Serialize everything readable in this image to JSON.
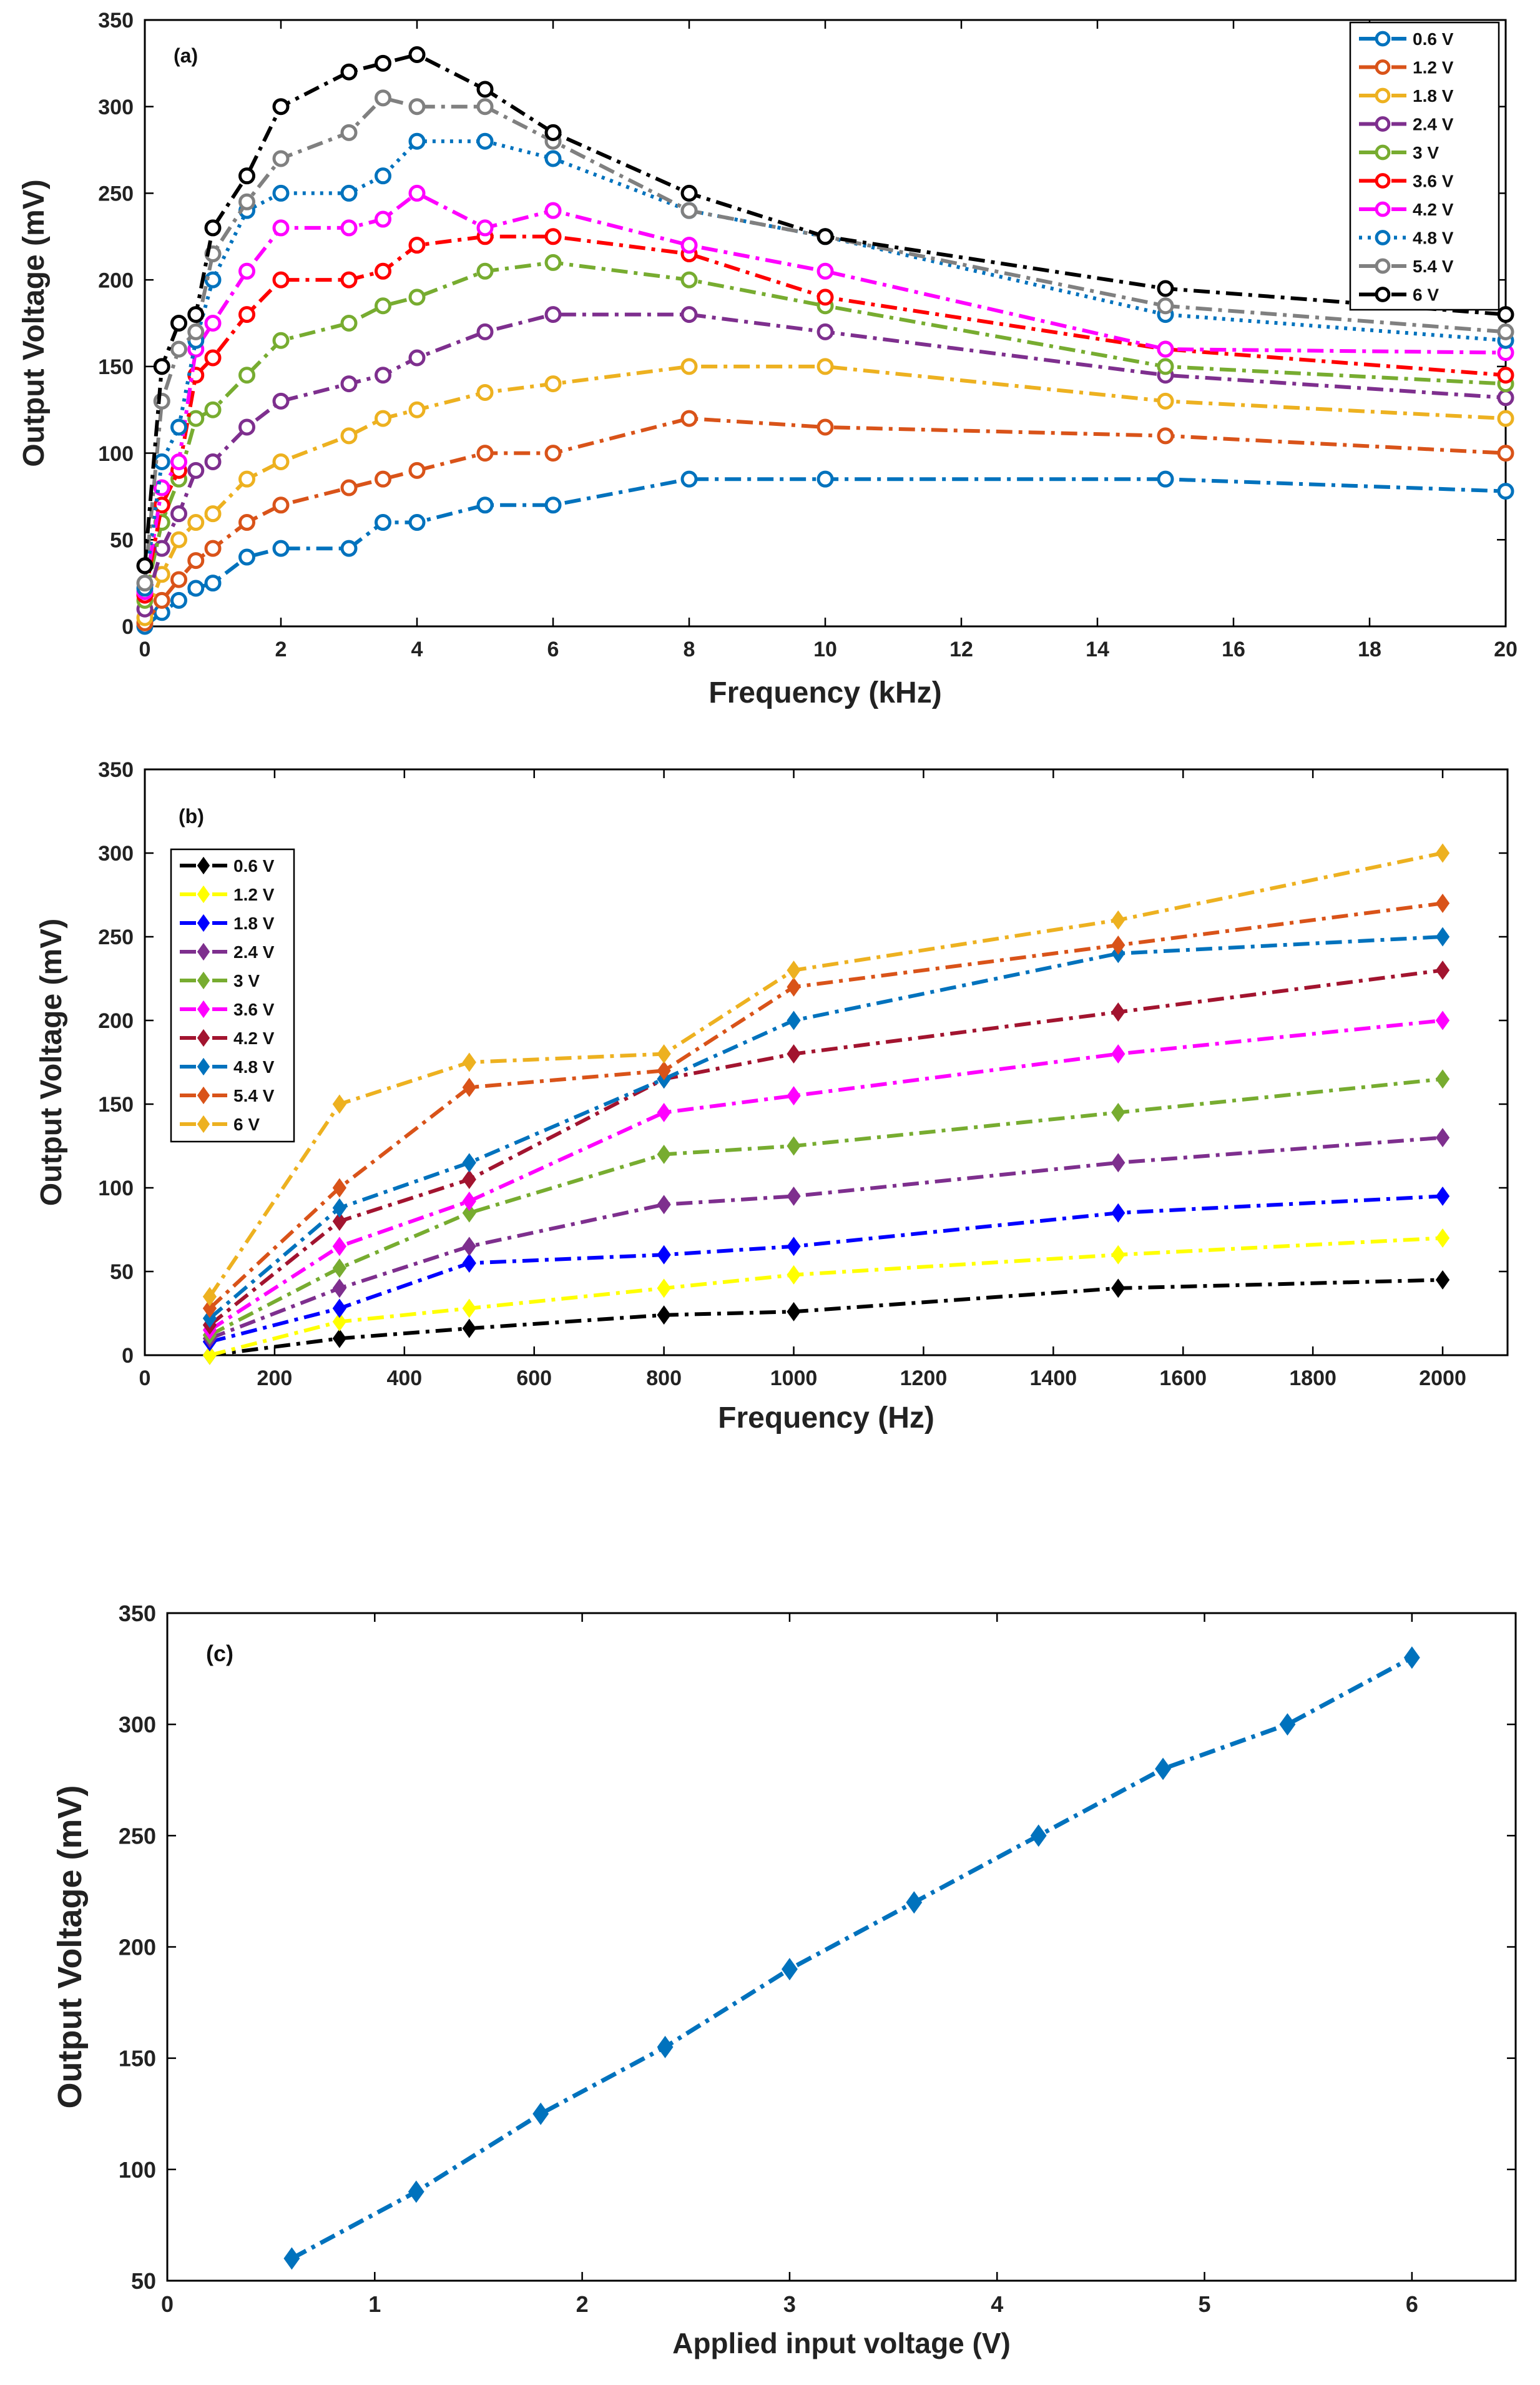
{
  "chart_data": [
    {
      "type": "line",
      "panel": "(a)",
      "xlabel": "Frequency (kHz)",
      "ylabel": "Output Voltage (mV)",
      "xlim": [
        0,
        20
      ],
      "ylim": [
        0,
        350
      ],
      "xticks": [
        0,
        2,
        4,
        6,
        8,
        10,
        12,
        14,
        16,
        18,
        20
      ],
      "yticks": [
        0,
        50,
        100,
        150,
        200,
        250,
        300,
        350
      ],
      "legend_position": "top-right",
      "marker": "circle",
      "series": [
        {
          "name": "0.6 V",
          "color": "#0072BD",
          "dash": "dashdot",
          "x": [
            0,
            0.25,
            0.5,
            0.75,
            1,
            1.5,
            2,
            3,
            3.5,
            4,
            5,
            6,
            8,
            10,
            15,
            20
          ],
          "y": [
            0,
            8,
            15,
            22,
            25,
            40,
            45,
            45,
            60,
            60,
            70,
            70,
            85,
            85,
            85,
            78
          ]
        },
        {
          "name": "1.2 V",
          "color": "#D95319",
          "dash": "dashdot",
          "x": [
            0,
            0.25,
            0.5,
            0.75,
            1,
            1.5,
            2,
            3,
            3.5,
            4,
            5,
            6,
            8,
            10,
            15,
            20
          ],
          "y": [
            2,
            15,
            27,
            38,
            45,
            60,
            70,
            80,
            85,
            90,
            100,
            100,
            120,
            115,
            110,
            100
          ]
        },
        {
          "name": "1.8 V",
          "color": "#EDB120",
          "dash": "dashdot",
          "x": [
            0,
            0.25,
            0.5,
            0.75,
            1,
            1.5,
            2,
            3,
            3.5,
            4,
            5,
            6,
            8,
            10,
            15,
            20
          ],
          "y": [
            5,
            30,
            50,
            60,
            65,
            85,
            95,
            110,
            120,
            125,
            135,
            140,
            150,
            150,
            130,
            120
          ]
        },
        {
          "name": "2.4 V",
          "color": "#7E2F8E",
          "dash": "dashdot",
          "x": [
            0,
            0.25,
            0.5,
            0.75,
            1,
            1.5,
            2,
            3,
            3.5,
            4,
            5,
            6,
            8,
            10,
            15,
            20
          ],
          "y": [
            10,
            45,
            65,
            90,
            95,
            115,
            130,
            140,
            145,
            155,
            170,
            180,
            180,
            170,
            145,
            132
          ]
        },
        {
          "name": "3 V",
          "color": "#77AC30",
          "dash": "dashdot",
          "x": [
            0,
            0.25,
            0.5,
            0.75,
            1,
            1.5,
            2,
            3,
            3.5,
            4,
            5,
            6,
            8,
            10,
            15,
            20
          ],
          "y": [
            15,
            60,
            85,
            120,
            125,
            145,
            165,
            175,
            185,
            190,
            205,
            210,
            200,
            185,
            150,
            140
          ]
        },
        {
          "name": "3.6 V",
          "color": "#FF0000",
          "dash": "dashdot",
          "x": [
            0,
            0.25,
            0.5,
            0.75,
            1,
            1.5,
            2,
            3,
            3.5,
            4,
            5,
            6,
            8,
            10,
            15,
            20
          ],
          "y": [
            18,
            70,
            90,
            145,
            155,
            180,
            200,
            200,
            205,
            220,
            225,
            225,
            215,
            190,
            160,
            145
          ]
        },
        {
          "name": "4.2 V",
          "color": "#FF00FF",
          "dash": "dashdot",
          "x": [
            0,
            0.25,
            0.5,
            0.75,
            1,
            1.5,
            2,
            3,
            3.5,
            4,
            5,
            6,
            8,
            10,
            15,
            20
          ],
          "y": [
            20,
            80,
            95,
            160,
            175,
            205,
            230,
            230,
            235,
            250,
            230,
            240,
            220,
            205,
            160,
            158
          ]
        },
        {
          "name": "4.8 V",
          "color": "#0072BD",
          "dash": "dotted",
          "x": [
            0,
            0.25,
            0.5,
            0.75,
            1,
            1.5,
            2,
            3,
            3.5,
            4,
            5,
            6,
            8,
            10,
            15,
            20
          ],
          "y": [
            22,
            95,
            115,
            165,
            200,
            240,
            250,
            250,
            260,
            280,
            280,
            270,
            240,
            225,
            180,
            165
          ]
        },
        {
          "name": "5.4 V",
          "color": "#808080",
          "dash": "dashdot",
          "x": [
            0,
            0.25,
            0.5,
            0.75,
            1,
            1.5,
            2,
            3,
            3.5,
            4,
            5,
            6,
            8,
            10,
            15,
            20
          ],
          "y": [
            25,
            130,
            160,
            170,
            215,
            245,
            270,
            285,
            305,
            300,
            300,
            280,
            240,
            225,
            185,
            170
          ]
        },
        {
          "name": "6 V",
          "color": "#000000",
          "dash": "dashdot",
          "x": [
            0,
            0.25,
            0.5,
            0.75,
            1,
            1.5,
            2,
            3,
            3.5,
            4,
            5,
            6,
            8,
            10,
            15,
            20
          ],
          "y": [
            35,
            150,
            175,
            180,
            230,
            260,
            300,
            320,
            325,
            330,
            310,
            285,
            250,
            225,
            195,
            180
          ]
        }
      ]
    },
    {
      "type": "line",
      "panel": "(b)",
      "xlabel": "Frequency (Hz)",
      "ylabel": "Output Voltage (mV)",
      "xlim": [
        0,
        2100
      ],
      "ylim": [
        0,
        350
      ],
      "xticks": [
        0,
        200,
        400,
        600,
        800,
        1000,
        1200,
        1400,
        1600,
        1800,
        2000
      ],
      "yticks": [
        0,
        50,
        100,
        150,
        200,
        250,
        300,
        350
      ],
      "legend_position": "top-left",
      "marker": "diamond",
      "series": [
        {
          "name": "0.6 V",
          "color": "#000000",
          "dash": "dashdot",
          "x": [
            100,
            300,
            500,
            800,
            1000,
            1500,
            2000
          ],
          "y": [
            0,
            10,
            16,
            24,
            26,
            40,
            45
          ]
        },
        {
          "name": "1.2 V",
          "color": "#FFFF00",
          "dash": "dashdot",
          "x": [
            100,
            300,
            500,
            800,
            1000,
            1500,
            2000
          ],
          "y": [
            0,
            20,
            28,
            40,
            48,
            60,
            70
          ]
        },
        {
          "name": "1.8 V",
          "color": "#0000FF",
          "dash": "dashdot",
          "x": [
            100,
            300,
            500,
            800,
            1000,
            1500,
            2000
          ],
          "y": [
            8,
            28,
            55,
            60,
            65,
            85,
            95
          ]
        },
        {
          "name": "2.4 V",
          "color": "#7E2F8E",
          "dash": "dashdot",
          "x": [
            100,
            300,
            500,
            800,
            1000,
            1500,
            2000
          ],
          "y": [
            10,
            40,
            65,
            90,
            95,
            115,
            130
          ]
        },
        {
          "name": "3 V",
          "color": "#77AC30",
          "dash": "dashdot",
          "x": [
            100,
            300,
            500,
            800,
            1000,
            1500,
            2000
          ],
          "y": [
            12,
            52,
            85,
            120,
            125,
            145,
            165
          ]
        },
        {
          "name": "3.6 V",
          "color": "#FF00FF",
          "dash": "dashdot",
          "x": [
            100,
            300,
            500,
            800,
            1000,
            1500,
            2000
          ],
          "y": [
            15,
            65,
            92,
            145,
            155,
            180,
            200
          ]
        },
        {
          "name": "4.2 V",
          "color": "#A2142F",
          "dash": "dashdot",
          "x": [
            100,
            300,
            500,
            800,
            1000,
            1500,
            2000
          ],
          "y": [
            18,
            80,
            105,
            165,
            180,
            205,
            230
          ]
        },
        {
          "name": "4.8 V",
          "color": "#0072BD",
          "dash": "dashdot",
          "x": [
            100,
            300,
            500,
            800,
            1000,
            1500,
            2000
          ],
          "y": [
            22,
            88,
            115,
            165,
            200,
            240,
            250
          ]
        },
        {
          "name": "5.4 V",
          "color": "#D95319",
          "dash": "dashdot",
          "x": [
            100,
            300,
            500,
            800,
            1000,
            1500,
            2000
          ],
          "y": [
            28,
            100,
            160,
            170,
            220,
            245,
            270
          ]
        },
        {
          "name": "6 V",
          "color": "#EDB120",
          "dash": "dashdot",
          "x": [
            100,
            300,
            500,
            800,
            1000,
            1500,
            2000
          ],
          "y": [
            35,
            150,
            175,
            180,
            230,
            260,
            300
          ]
        }
      ]
    },
    {
      "type": "line",
      "panel": "(c)",
      "xlabel": "Applied input voltage (V)",
      "ylabel": "Output Voltage (mV)",
      "xlim": [
        0,
        6.5
      ],
      "ylim": [
        50,
        350
      ],
      "xticks": [
        0,
        1,
        2,
        3,
        4,
        5,
        6
      ],
      "yticks": [
        50,
        100,
        150,
        200,
        250,
        300,
        350
      ],
      "marker": "diamond",
      "series": [
        {
          "name": "",
          "color": "#0072BD",
          "dash": "dashdot",
          "x": [
            0.6,
            1.2,
            1.8,
            2.4,
            3.0,
            3.6,
            4.2,
            4.8,
            5.4,
            6.0
          ],
          "y": [
            60,
            90,
            125,
            155,
            190,
            220,
            250,
            280,
            300,
            330
          ]
        }
      ]
    }
  ]
}
